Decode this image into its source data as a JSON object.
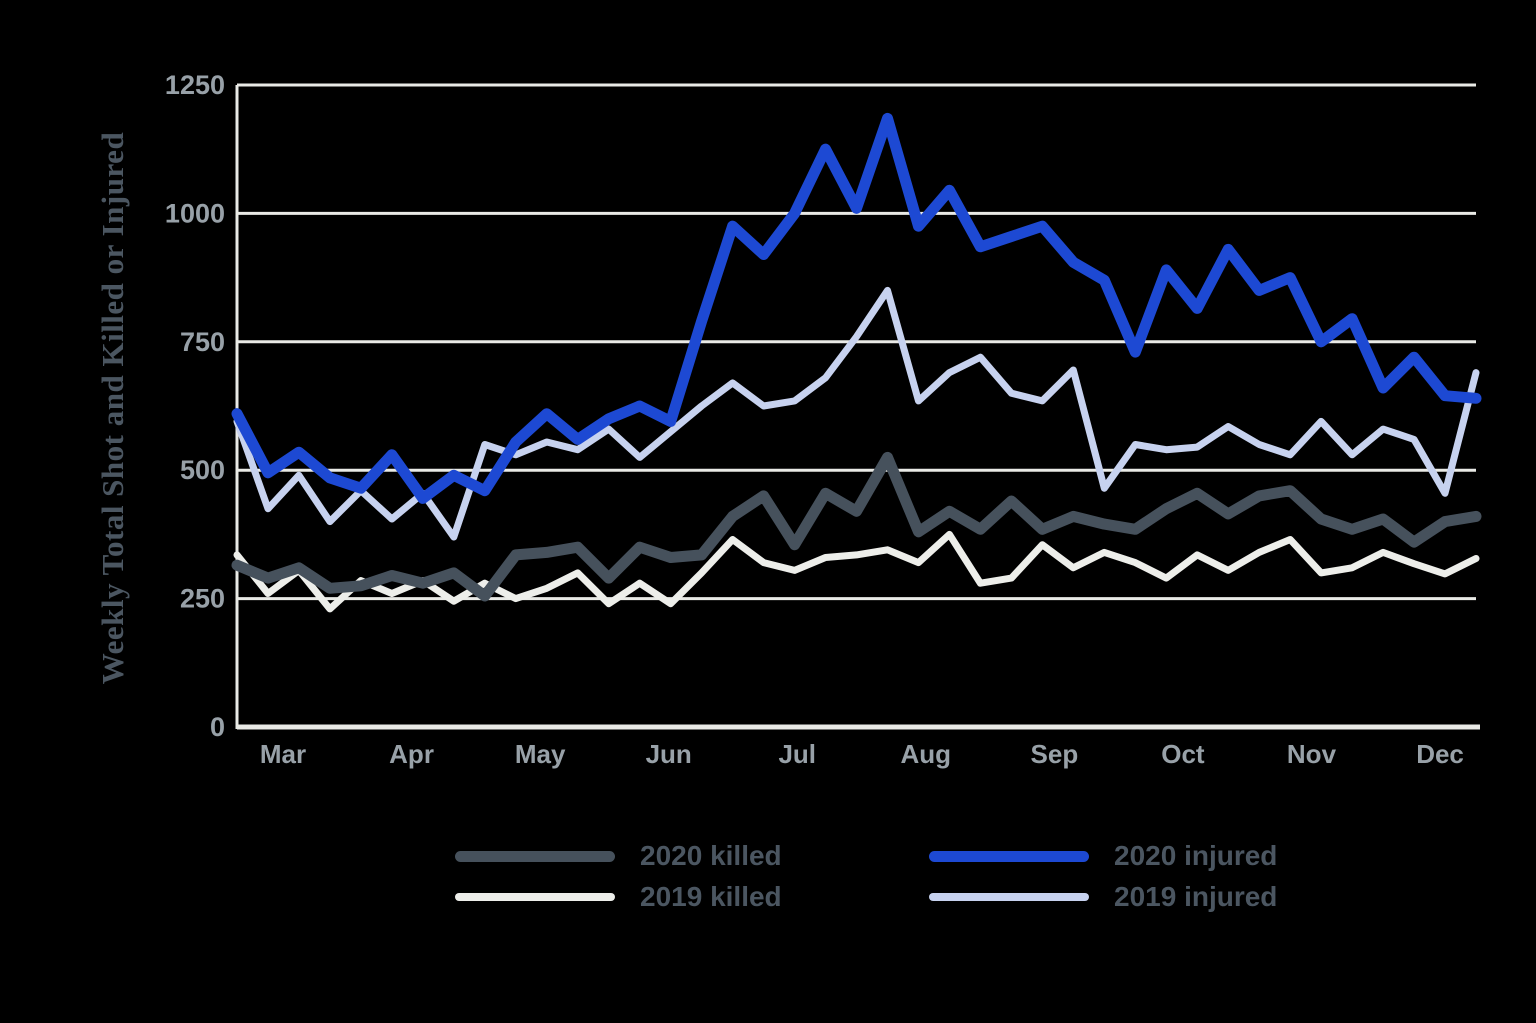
{
  "style": {
    "background": "#000000",
    "grid_color": "#e9eae6",
    "tick_text_color": "#98a1a8",
    "label_text_color": "#4b5661"
  },
  "chart_data": {
    "type": "line",
    "title": "",
    "xlabel": "",
    "ylabel": "Weekly Total Shot and Killed or Injured",
    "ylim": [
      0,
      1250
    ],
    "yticks": [
      0,
      250,
      500,
      750,
      1000,
      1250
    ],
    "xticklabels": [
      "Mar",
      "Apr",
      "May",
      "Jun",
      "Jul",
      "Aug",
      "Sep",
      "Oct",
      "Nov",
      "Dec"
    ],
    "x_unit": "week (late Feb through Dec, 41 weekly points)",
    "grid": true,
    "legend_position": "bottom",
    "series": [
      {
        "name": "2020 killed",
        "color": "#46515c",
        "values": [
          315,
          290,
          310,
          270,
          275,
          295,
          280,
          300,
          255,
          335,
          340,
          350,
          290,
          350,
          330,
          335,
          410,
          450,
          355,
          455,
          420,
          525,
          380,
          420,
          385,
          440,
          385,
          410,
          395,
          385,
          425,
          455,
          415,
          450,
          460,
          405,
          385,
          405,
          360,
          400,
          410
        ]
      },
      {
        "name": "2019 killed",
        "color": "#edeeea",
        "values": [
          335,
          260,
          305,
          230,
          285,
          260,
          285,
          245,
          280,
          250,
          270,
          300,
          240,
          280,
          240,
          300,
          365,
          320,
          305,
          330,
          335,
          345,
          320,
          375,
          280,
          290,
          355,
          310,
          340,
          320,
          290,
          335,
          305,
          340,
          365,
          300,
          310,
          340,
          318,
          298,
          328
        ]
      },
      {
        "name": "2020 injured",
        "color": "#1d49d3",
        "values": [
          610,
          495,
          535,
          485,
          465,
          530,
          445,
          490,
          460,
          555,
          610,
          560,
          600,
          625,
          595,
          790,
          975,
          920,
          1000,
          1125,
          1010,
          1185,
          975,
          1045,
          935,
          955,
          975,
          905,
          870,
          730,
          890,
          815,
          930,
          850,
          875,
          750,
          795,
          660,
          720,
          645,
          640
        ]
      },
      {
        "name": "2019 injured",
        "color": "#c7d2ef",
        "values": [
          595,
          425,
          490,
          400,
          460,
          405,
          455,
          370,
          550,
          530,
          555,
          540,
          580,
          525,
          575,
          625,
          670,
          625,
          635,
          680,
          760,
          850,
          635,
          690,
          720,
          650,
          635,
          695,
          465,
          550,
          540,
          545,
          585,
          550,
          530,
          595,
          530,
          580,
          560,
          455,
          690
        ]
      }
    ]
  },
  "legend": {
    "row1_col1": "2020 killed",
    "row1_col2": "2020 injured",
    "row2_col1": "2019 killed",
    "row2_col2": "2019 injured"
  }
}
